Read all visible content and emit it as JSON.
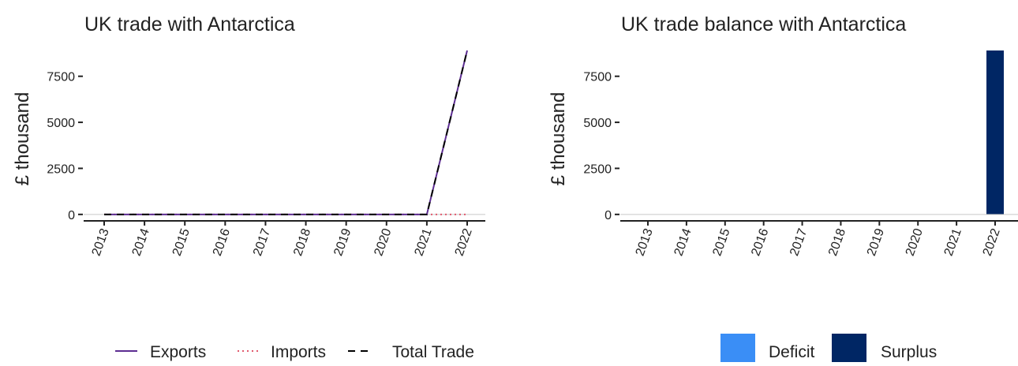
{
  "chart_data": [
    {
      "type": "line",
      "title": "UK trade with Antarctica",
      "xlabel": "",
      "ylabel": "£ thousand",
      "categories": [
        "2013",
        "2014",
        "2015",
        "2016",
        "2017",
        "2018",
        "2019",
        "2020",
        "2021",
        "2022"
      ],
      "yticks": [
        0,
        2500,
        5000,
        7500
      ],
      "ylim": [
        -350,
        9500
      ],
      "grid": false,
      "legend": "bottom",
      "series": [
        {
          "name": "Exports",
          "color": "#5c2d91",
          "dash": "solid",
          "values": [
            0,
            0,
            0,
            0,
            0,
            0,
            0,
            0,
            0,
            8900
          ]
        },
        {
          "name": "Imports",
          "color": "#e05a6e",
          "dash": "dotted",
          "values": [
            0,
            0,
            0,
            0,
            0,
            0,
            0,
            0,
            0,
            0
          ]
        },
        {
          "name": "Total Trade",
          "color": "#000000",
          "dash": "dashed",
          "values": [
            0,
            0,
            0,
            0,
            0,
            0,
            0,
            0,
            0,
            8900
          ]
        }
      ]
    },
    {
      "type": "bar",
      "title": "UK trade balance with Antarctica",
      "xlabel": "",
      "ylabel": "£ thousand",
      "categories": [
        "2013",
        "2014",
        "2015",
        "2016",
        "2017",
        "2018",
        "2019",
        "2020",
        "2021",
        "2022"
      ],
      "values": [
        0,
        0,
        0,
        0,
        0,
        0,
        0,
        0,
        0,
        8900
      ],
      "yticks": [
        0,
        2500,
        5000,
        7500
      ],
      "ylim": [
        -350,
        9500
      ],
      "grid": false,
      "legend": "bottom",
      "legend_entries": [
        {
          "name": "Deficit",
          "color": "#3a8ef6"
        },
        {
          "name": "Surplus",
          "color": "#002664"
        }
      ],
      "bar_color_positive": "#002664",
      "bar_color_negative": "#3a8ef6"
    }
  ]
}
